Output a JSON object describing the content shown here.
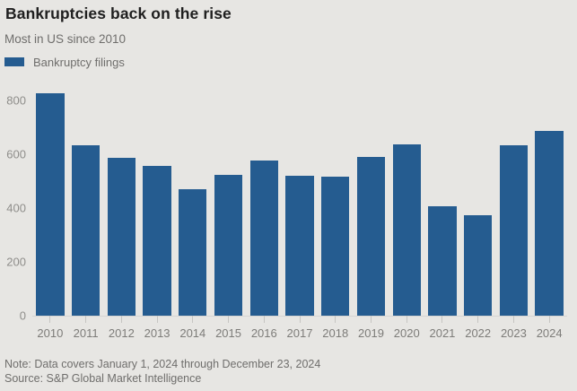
{
  "header": {
    "title": "Bankruptcies back on the rise",
    "subtitle": "Most in US since 2010",
    "legend": {
      "label": "Bankruptcy filings",
      "swatch_color": "#255c90"
    }
  },
  "chart_data": {
    "type": "bar",
    "title": "Bankruptcies back on the rise",
    "subtitle": "Most in US since 2010",
    "series_name": "Bankruptcy filings",
    "categories": [
      "2010",
      "2011",
      "2012",
      "2013",
      "2014",
      "2015",
      "2016",
      "2017",
      "2018",
      "2019",
      "2020",
      "2021",
      "2022",
      "2023",
      "2024"
    ],
    "values": [
      828,
      634,
      586,
      558,
      471,
      525,
      576,
      520,
      518,
      589,
      638,
      406,
      373,
      635,
      686
    ],
    "ylim": [
      0,
      840
    ],
    "yticks": [
      0,
      200,
      400,
      600,
      800
    ],
    "xlabel": "",
    "ylabel": "",
    "grid": false,
    "legend_position": "top-left",
    "bar_color": "#255c90",
    "background_color": "#e7e6e3",
    "axis_text_color": "#8f8e8b"
  },
  "footer": {
    "note": "Note: Data covers January 1, 2024 through December 23, 2024",
    "source": "Source: S&P Global Market Intelligence"
  }
}
